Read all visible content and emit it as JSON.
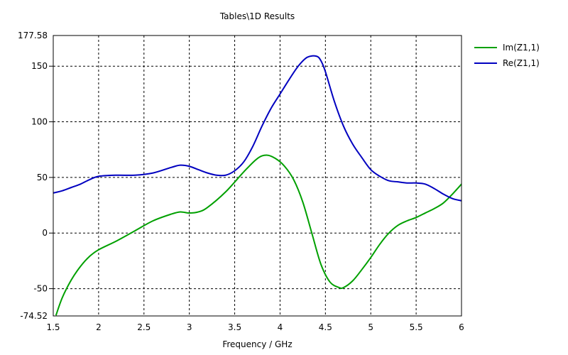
{
  "chart_data": {
    "type": "line",
    "title": "Tables\\1D Results",
    "xlabel": "Frequency / GHz",
    "ylabel": "",
    "xlim": [
      1.5,
      6
    ],
    "ylim": [
      -74.52,
      177.58
    ],
    "xticks": [
      "1.5",
      "2",
      "2.5",
      "3",
      "3.5",
      "4",
      "4.5",
      "5",
      "5.5",
      "6"
    ],
    "yticks": [
      "-74.52",
      "-50",
      "0",
      "50",
      "100",
      "150",
      "177.58"
    ],
    "grid": true,
    "legend_position": "top-right",
    "series": [
      {
        "name": "Im(Z1,1)",
        "color": "#00a000",
        "x": [
          1.53,
          1.6,
          1.7,
          1.8,
          1.9,
          2.0,
          2.2,
          2.4,
          2.6,
          2.8,
          2.9,
          3.0,
          3.1,
          3.2,
          3.4,
          3.6,
          3.75,
          3.85,
          3.95,
          4.05,
          4.15,
          4.25,
          4.35,
          4.45,
          4.55,
          4.65,
          4.7,
          4.8,
          4.9,
          5.0,
          5.1,
          5.2,
          5.3,
          5.4,
          5.5,
          5.6,
          5.7,
          5.8,
          5.9,
          6.0
        ],
        "y": [
          -74,
          -58,
          -42,
          -30,
          -21,
          -15,
          -7,
          2,
          11,
          17,
          19,
          18,
          19,
          23,
          37,
          55,
          67,
          70,
          67,
          60,
          48,
          28,
          0,
          -28,
          -44,
          -49,
          -49,
          -43,
          -33,
          -22,
          -10,
          0,
          7,
          11,
          14,
          18,
          22,
          27,
          35,
          44
        ]
      },
      {
        "name": "Re(Z1,1)",
        "color": "#0000c0",
        "x": [
          1.5,
          1.6,
          1.7,
          1.8,
          1.9,
          2.0,
          2.2,
          2.4,
          2.6,
          2.8,
          2.9,
          3.0,
          3.1,
          3.2,
          3.3,
          3.4,
          3.5,
          3.6,
          3.7,
          3.8,
          3.9,
          4.0,
          4.1,
          4.2,
          4.3,
          4.4,
          4.45,
          4.5,
          4.6,
          4.7,
          4.8,
          4.9,
          5.0,
          5.1,
          5.2,
          5.3,
          5.4,
          5.5,
          5.6,
          5.7,
          5.8,
          5.9,
          6.0
        ],
        "y": [
          36,
          38,
          41,
          44,
          48,
          51,
          52,
          52,
          54,
          59,
          61,
          60,
          57,
          54,
          52,
          52,
          56,
          64,
          78,
          96,
          112,
          125,
          138,
          150,
          158,
          159,
          155,
          145,
          118,
          96,
          80,
          68,
          57,
          51,
          47,
          46,
          45,
          45,
          44,
          40,
          35,
          31,
          29
        ]
      }
    ]
  }
}
